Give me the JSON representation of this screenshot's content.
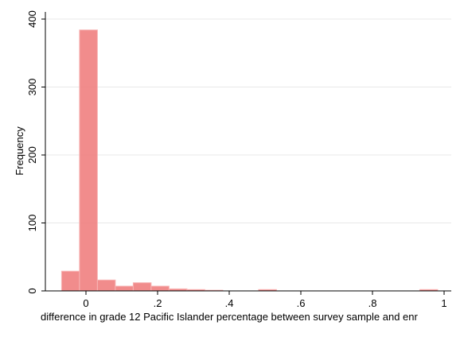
{
  "chart_data": {
    "type": "bar",
    "title": "",
    "xlabel": "difference in grade 12 Pacific Islander percentage between survey sample and enr",
    "ylabel": "Frequency",
    "xlim": [
      -0.1,
      1.0
    ],
    "ylim": [
      0,
      410
    ],
    "x_ticks": [
      0,
      0.2,
      0.4,
      0.6,
      0.8,
      1.0
    ],
    "x_tick_labels": [
      "0",
      ".2",
      ".4",
      ".6",
      ".8",
      "1"
    ],
    "y_ticks": [
      0,
      100,
      200,
      300,
      400
    ],
    "y_tick_labels": [
      "0",
      "100",
      "200",
      "300",
      "400"
    ],
    "grid": true,
    "bar_color": "#f08080",
    "bin_width": 0.05,
    "bins": [
      {
        "x0": -0.068,
        "count": 29
      },
      {
        "x0": -0.018,
        "count": 384
      },
      {
        "x0": 0.032,
        "count": 16
      },
      {
        "x0": 0.082,
        "count": 7
      },
      {
        "x0": 0.132,
        "count": 12
      },
      {
        "x0": 0.182,
        "count": 7
      },
      {
        "x0": 0.232,
        "count": 3
      },
      {
        "x0": 0.282,
        "count": 2
      },
      {
        "x0": 0.332,
        "count": 1
      },
      {
        "x0": 0.482,
        "count": 2
      },
      {
        "x0": 0.932,
        "count": 2
      }
    ]
  }
}
